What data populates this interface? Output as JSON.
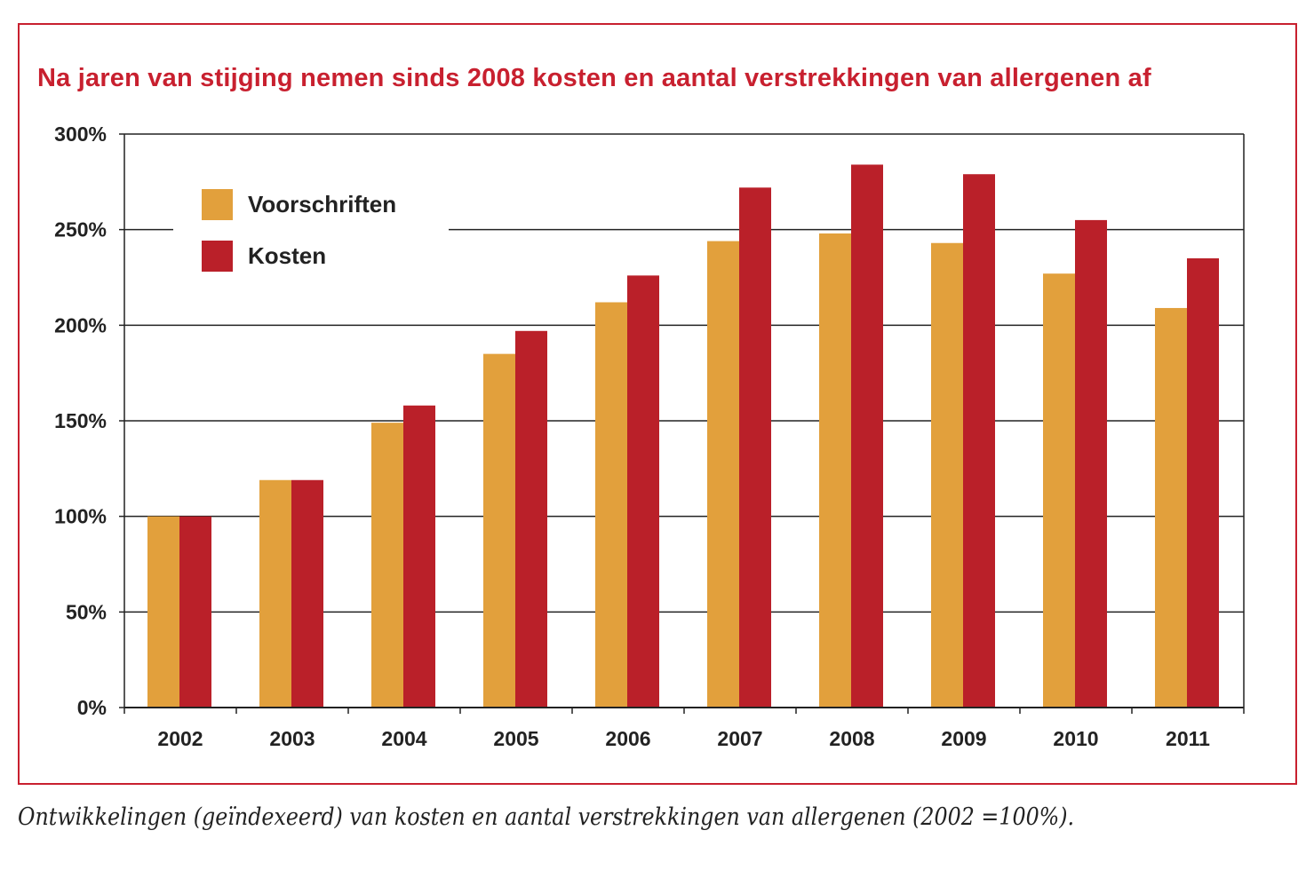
{
  "chart_data": {
    "type": "bar",
    "title": "Na jaren van stijging nemen sinds 2008 kosten en aantal verstrekkingen van allergenen af",
    "caption": "Ontwikkelingen (geïndexeerd) van kosten en aantal verstrekkingen van allergenen (2002 =100%).",
    "xlabel": "",
    "ylabel": "",
    "ylim": [
      0,
      300
    ],
    "yticks": [
      "0%",
      "50%",
      "100%",
      "150%",
      "200%",
      "250%",
      "300%"
    ],
    "ytick_values": [
      0,
      50,
      100,
      150,
      200,
      250,
      300
    ],
    "categories": [
      "2002",
      "2003",
      "2004",
      "2005",
      "2006",
      "2007",
      "2008",
      "2009",
      "2010",
      "2011"
    ],
    "series": [
      {
        "name": "Voorschriften",
        "color": "#e2a03c",
        "values": [
          100,
          119,
          149,
          185,
          212,
          244,
          248,
          243,
          227,
          209
        ]
      },
      {
        "name": "Kosten",
        "color": "#ba2029",
        "values": [
          100,
          119,
          158,
          197,
          226,
          272,
          284,
          279,
          255,
          235
        ]
      }
    ],
    "grid": true,
    "legend_placement": "top-left"
  }
}
